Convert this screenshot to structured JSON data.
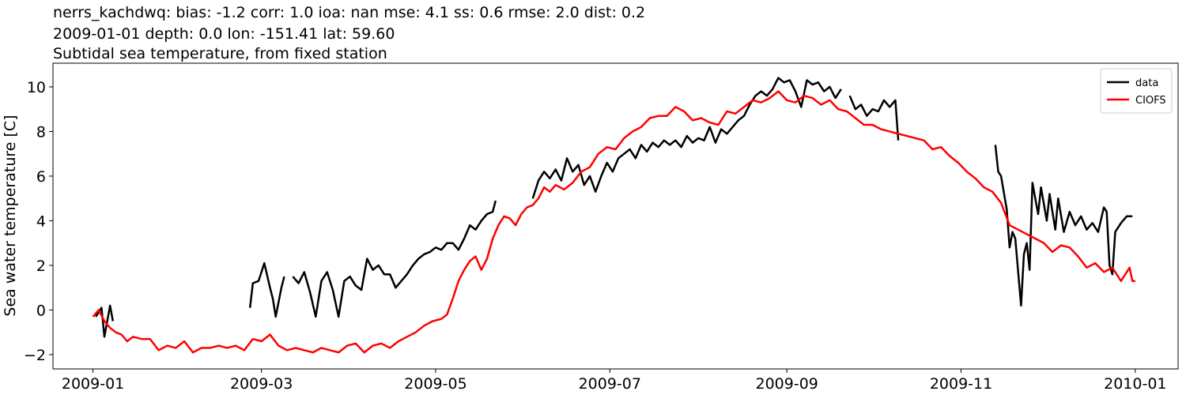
{
  "chart_data": {
    "type": "line",
    "title": "nerrs_kachdwq: bias: -1.2  corr: 1.0  ioa: nan  mse: 4.1  ss: 0.6  rmse: 2.0  dist: 0.2",
    "subtitle": "2009-01-01 depth: 0.0 lon: -151.41 lat: 59.60",
    "subtitle2": "Subtidal sea temperature, from fixed station",
    "ylabel": "Sea water temperature [C]",
    "xlim": [
      -14,
      380
    ],
    "xticks": [
      {
        "value": 0,
        "label": "2009-01"
      },
      {
        "value": 59,
        "label": "2009-03"
      },
      {
        "value": 120,
        "label": "2009-05"
      },
      {
        "value": 181,
        "label": "2009-07"
      },
      {
        "value": 243,
        "label": "2009-09"
      },
      {
        "value": 304,
        "label": "2009-11"
      },
      {
        "value": 365,
        "label": "2010-01"
      }
    ],
    "ylim": [
      -2.64,
      11.06
    ],
    "yticks": [
      {
        "value": -2,
        "label": "−2"
      },
      0,
      2,
      4,
      6,
      8,
      10
    ],
    "grid": false,
    "legend": "upper right",
    "series": [
      {
        "name": "data",
        "color": "#000000",
        "x": [
          1,
          3,
          4,
          6,
          7,
          30,
          55,
          56,
          58,
          60,
          62,
          63,
          64,
          66,
          67,
          68,
          70,
          72,
          74,
          76,
          78,
          80,
          82,
          84,
          86,
          88,
          90,
          92,
          94,
          96,
          98,
          100,
          102,
          104,
          106,
          108,
          110,
          112,
          114,
          116,
          118,
          120,
          122,
          124,
          126,
          128,
          130,
          132,
          134,
          136,
          138,
          140,
          141,
          148,
          154,
          156,
          158,
          160,
          162,
          164,
          166,
          168,
          170,
          172,
          174,
          176,
          178,
          180,
          182,
          184,
          186,
          188,
          190,
          192,
          194,
          196,
          198,
          200,
          202,
          204,
          206,
          208,
          210,
          212,
          214,
          216,
          218,
          220,
          222,
          224,
          226,
          228,
          230,
          232,
          234,
          236,
          238,
          240,
          242,
          244,
          246,
          248,
          250,
          252,
          254,
          256,
          258,
          260,
          262,
          264,
          265,
          267,
          269,
          271,
          273,
          275,
          277,
          279,
          281,
          282,
          300,
          316,
          317,
          318,
          320,
          321,
          322,
          323,
          325,
          326,
          327,
          328,
          329,
          331,
          332,
          334,
          335,
          337,
          338,
          340,
          342,
          344,
          346,
          348,
          350,
          352,
          354,
          355,
          356,
          357,
          358,
          360,
          362,
          364
        ],
        "values": [
          -0.3,
          0.1,
          -1.2,
          0.2,
          -0.5,
          null,
          0.1,
          1.2,
          1.3,
          2.1,
          1.0,
          0.5,
          -0.3,
          1.0,
          1.5,
          null,
          1.5,
          1.2,
          1.7,
          0.8,
          -0.3,
          1.3,
          1.7,
          0.9,
          -0.3,
          1.3,
          1.5,
          1.1,
          0.9,
          2.3,
          1.8,
          2.0,
          1.6,
          1.6,
          1.0,
          1.3,
          1.6,
          2.0,
          2.3,
          2.5,
          2.6,
          2.8,
          2.7,
          3.0,
          3.0,
          2.7,
          3.2,
          3.8,
          3.6,
          4.0,
          4.3,
          4.4,
          4.9,
          null,
          5.0,
          5.8,
          6.2,
          5.9,
          6.3,
          5.8,
          6.8,
          6.2,
          6.5,
          5.6,
          6.0,
          5.3,
          6.0,
          6.6,
          6.2,
          6.8,
          7.0,
          7.2,
          6.8,
          7.4,
          7.1,
          7.5,
          7.3,
          7.6,
          7.4,
          7.6,
          7.3,
          7.8,
          7.5,
          7.7,
          7.6,
          8.2,
          7.5,
          8.1,
          7.9,
          8.2,
          8.5,
          8.7,
          9.2,
          9.6,
          9.8,
          9.6,
          9.9,
          10.4,
          10.2,
          10.3,
          9.8,
          9.1,
          10.3,
          10.1,
          10.2,
          9.8,
          10.0,
          9.5,
          9.9,
          null,
          9.6,
          9.0,
          9.2,
          8.7,
          9.0,
          8.9,
          9.4,
          9.1,
          9.4,
          7.6,
          null,
          7.4,
          6.2,
          6.0,
          4.5,
          2.8,
          3.5,
          3.2,
          0.2,
          2.5,
          3.0,
          1.8,
          5.7,
          4.3,
          5.5,
          4.0,
          5.2,
          3.6,
          5.0,
          3.5,
          4.4,
          3.8,
          4.2,
          3.6,
          3.9,
          3.5,
          4.6,
          4.4,
          2.0,
          1.6,
          3.5,
          3.9,
          4.2,
          4.2
        ]
      },
      {
        "name": "CIOFS",
        "color": "#ff0000",
        "x": [
          0,
          2,
          4,
          6,
          8,
          10,
          12,
          14,
          17,
          20,
          23,
          26,
          29,
          32,
          35,
          38,
          41,
          44,
          47,
          50,
          53,
          56,
          59,
          62,
          65,
          68,
          71,
          74,
          77,
          80,
          83,
          86,
          89,
          92,
          95,
          98,
          101,
          104,
          107,
          110,
          113,
          116,
          119,
          122,
          124,
          126,
          128,
          130,
          132,
          134,
          136,
          138,
          140,
          142,
          144,
          146,
          148,
          150,
          152,
          154,
          156,
          158,
          160,
          162,
          165,
          168,
          171,
          174,
          177,
          180,
          183,
          186,
          189,
          192,
          195,
          198,
          201,
          204,
          207,
          210,
          213,
          216,
          219,
          222,
          225,
          228,
          231,
          234,
          237,
          240,
          243,
          246,
          249,
          252,
          255,
          258,
          261,
          264,
          267,
          270,
          273,
          276,
          279,
          282,
          285,
          288,
          291,
          294,
          297,
          300,
          303,
          306,
          309,
          312,
          315,
          318,
          321,
          324,
          327,
          330,
          333,
          336,
          339,
          342,
          345,
          348,
          351,
          354,
          357,
          360,
          363,
          364,
          365
        ],
        "values": [
          -0.3,
          0.0,
          -0.5,
          -0.8,
          -1.0,
          -1.1,
          -1.4,
          -1.2,
          -1.3,
          -1.3,
          -1.8,
          -1.6,
          -1.7,
          -1.4,
          -1.9,
          -1.7,
          -1.7,
          -1.6,
          -1.7,
          -1.6,
          -1.8,
          -1.3,
          -1.4,
          -1.1,
          -1.6,
          -1.8,
          -1.7,
          -1.8,
          -1.9,
          -1.7,
          -1.8,
          -1.9,
          -1.6,
          -1.5,
          -1.9,
          -1.6,
          -1.5,
          -1.7,
          -1.4,
          -1.2,
          -1.0,
          -0.7,
          -0.5,
          -0.4,
          -0.2,
          0.5,
          1.3,
          1.8,
          2.2,
          2.4,
          1.8,
          2.3,
          3.2,
          3.8,
          4.2,
          4.1,
          3.8,
          4.3,
          4.6,
          4.7,
          5.0,
          5.5,
          5.3,
          5.6,
          5.4,
          5.7,
          6.2,
          6.4,
          7.0,
          7.3,
          7.2,
          7.7,
          8.0,
          8.2,
          8.6,
          8.7,
          8.7,
          9.1,
          8.9,
          8.5,
          8.6,
          8.4,
          8.3,
          8.9,
          8.8,
          9.1,
          9.4,
          9.3,
          9.5,
          9.8,
          9.4,
          9.3,
          9.6,
          9.5,
          9.2,
          9.4,
          9.0,
          8.9,
          8.6,
          8.3,
          8.3,
          8.1,
          8.0,
          7.9,
          7.8,
          7.7,
          7.6,
          7.2,
          7.3,
          6.9,
          6.6,
          6.2,
          5.9,
          5.5,
          5.3,
          4.8,
          3.8,
          3.6,
          3.4,
          3.2,
          3.0,
          2.6,
          2.9,
          2.8,
          2.4,
          1.9,
          2.1,
          1.7,
          1.9,
          1.3,
          1.9,
          1.3,
          1.3
        ]
      }
    ]
  }
}
